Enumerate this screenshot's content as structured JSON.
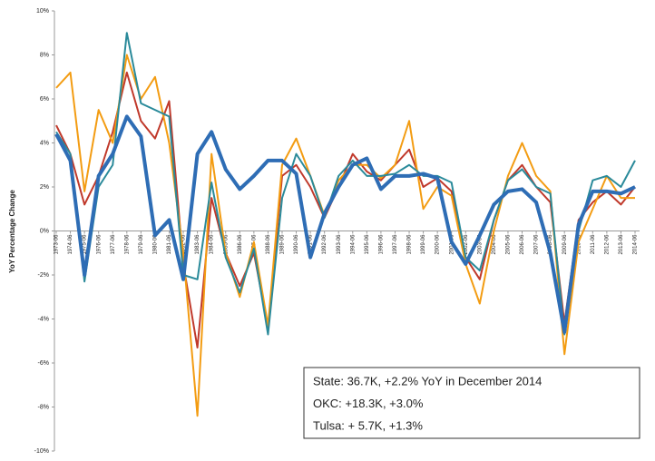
{
  "chart_data": {
    "type": "line",
    "y_label": "YoY Percentage Change",
    "categories": [
      "1973-06",
      "1974-06",
      "1975-06",
      "1976-06",
      "1977-06",
      "1978-06",
      "1979-06",
      "1980-06",
      "1981-06",
      "1982-06",
      "1983-06",
      "1984-06",
      "1985-06",
      "1986-06",
      "1987-06",
      "1988-06",
      "1989-06",
      "1990-06",
      "1991-06",
      "1992-06",
      "1993-06",
      "1994-06",
      "1995-06",
      "1996-06",
      "1997-06",
      "1998-06",
      "1999-06",
      "2000-06",
      "2001-06",
      "2002-06",
      "2003-06",
      "2004-06",
      "2005-06",
      "2006-06",
      "2007-06",
      "2008-06",
      "2009-06",
      "2010-06",
      "2011-06",
      "2012-06",
      "2013-06",
      "2014-06"
    ],
    "series": [
      {
        "color": "#c0392b",
        "width": 2,
        "values": [
          4.8,
          3.5,
          1.2,
          2.5,
          4.5,
          7.2,
          5.0,
          4.2,
          5.9,
          -1.5,
          -5.3,
          1.5,
          -1.0,
          -2.5,
          -1.0,
          -4.4,
          2.5,
          3.0,
          2.0,
          0.6,
          2.0,
          3.5,
          2.7,
          2.3,
          3.0,
          3.7,
          2.0,
          2.4,
          1.8,
          -1.2,
          -2.2,
          0.5,
          2.3,
          3.0,
          2.0,
          1.3,
          -4.2,
          0.5,
          1.3,
          1.8,
          1.2,
          2.0
        ]
      },
      {
        "color": "#f39c12",
        "width": 2,
        "values": [
          6.5,
          7.2,
          1.8,
          5.5,
          4.0,
          8.0,
          6.0,
          7.0,
          4.0,
          -1.0,
          -8.4,
          3.5,
          -1.0,
          -3.0,
          -0.5,
          -4.3,
          3.0,
          4.2,
          2.5,
          0.7,
          2.3,
          3.0,
          3.0,
          2.4,
          3.0,
          5.0,
          1.0,
          2.0,
          1.6,
          -1.5,
          -3.3,
          0.0,
          2.5,
          4.0,
          2.5,
          1.8,
          -5.6,
          -0.5,
          1.0,
          2.5,
          1.5,
          1.5
        ]
      },
      {
        "color": "#2a8a9a",
        "width": 2,
        "values": [
          4.5,
          3.5,
          -2.3,
          2.0,
          3.0,
          9.0,
          5.8,
          5.5,
          5.2,
          -2.0,
          -2.2,
          2.2,
          -1.2,
          -2.8,
          -0.8,
          -4.7,
          1.5,
          3.5,
          2.5,
          0.6,
          2.5,
          3.2,
          2.5,
          2.5,
          2.6,
          3.0,
          2.5,
          2.5,
          2.2,
          -1.2,
          -1.8,
          0.5,
          2.3,
          2.8,
          2.0,
          1.7,
          -4.7,
          0.0,
          2.3,
          2.5,
          2.0,
          3.2
        ]
      },
      {
        "color": "#2e6db5",
        "width": 4,
        "values": [
          4.4,
          3.2,
          -2.0,
          2.5,
          3.5,
          5.2,
          4.3,
          -0.2,
          0.5,
          -2.2,
          3.5,
          4.5,
          2.8,
          1.9,
          2.5,
          3.2,
          3.2,
          2.6,
          -1.2,
          0.8,
          2.0,
          3.0,
          3.3,
          1.9,
          2.5,
          2.5,
          2.6,
          2.4,
          -0.5,
          -1.5,
          -0.2,
          1.2,
          1.8,
          1.9,
          1.3,
          -1.0,
          -4.6,
          0.3,
          1.8,
          1.8,
          1.7,
          2.0
        ]
      }
    ],
    "ylim": [
      -10,
      10
    ],
    "yticks": [
      {
        "value": -10,
        "label": "-10%"
      },
      {
        "value": -8,
        "label": "-8%"
      },
      {
        "value": -6,
        "label": "-6%"
      },
      {
        "value": -4,
        "label": "-4%"
      },
      {
        "value": -2,
        "label": "-2%"
      },
      {
        "value": 0,
        "label": "0%"
      },
      {
        "value": 2,
        "label": "2%"
      },
      {
        "value": 4,
        "label": "4%"
      },
      {
        "value": 6,
        "label": "6%"
      },
      {
        "value": 8,
        "label": "8%"
      },
      {
        "value": 10,
        "label": "10%"
      }
    ],
    "annotations": [
      "State:  36.7K, +2.2% YoY in December 2014",
      "OKC:  +18.3K, +3.0%",
      "Tulsa: + 5.7K, +1.3%"
    ]
  }
}
